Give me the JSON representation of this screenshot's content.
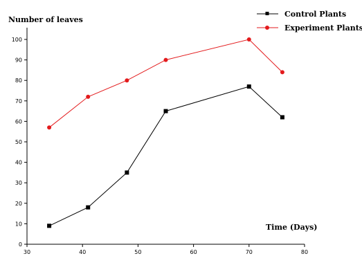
{
  "chart_data": {
    "type": "line",
    "ylabel": "Number of leaves",
    "xlabel": "Time (Days)",
    "xlim": [
      30,
      80
    ],
    "ylim": [
      0,
      100
    ],
    "x_ticks": [
      30,
      40,
      50,
      60,
      70,
      80
    ],
    "y_ticks": [
      0,
      10,
      20,
      30,
      40,
      50,
      60,
      70,
      80,
      90,
      100
    ],
    "x_tick_labels": [
      "30",
      "40",
      "50",
      "60",
      "70",
      "80"
    ],
    "y_tick_labels": [
      "0",
      "10",
      "20",
      "30",
      "40",
      "50",
      "60",
      "70",
      "80",
      "90",
      "100"
    ],
    "grid": false,
    "legend_position": "top-right",
    "series": [
      {
        "name": "Control Plants",
        "color": "#000000",
        "marker": "square",
        "x": [
          34,
          41,
          48,
          55,
          70,
          76
        ],
        "y": [
          9,
          18,
          35,
          65,
          77,
          62
        ]
      },
      {
        "name": "Experiment Plants",
        "color": "#e31a1c",
        "marker": "circle",
        "x": [
          34,
          41,
          48,
          55,
          70,
          76
        ],
        "y": [
          57,
          72,
          80,
          90,
          100,
          84
        ]
      }
    ]
  }
}
